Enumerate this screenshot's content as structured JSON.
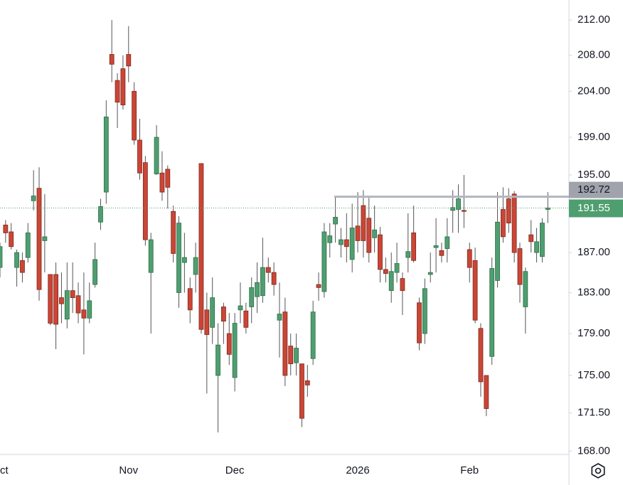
{
  "chart_data": {
    "type": "candlestick",
    "log_scale": true,
    "grid": false,
    "up_color": "#4f9e70",
    "down_color": "#cc4535",
    "categories": [
      "Oct",
      null,
      null,
      null,
      null,
      null,
      null,
      null,
      null,
      null,
      null,
      null,
      null,
      null,
      null,
      null,
      null,
      null,
      null,
      null,
      null,
      null,
      null,
      "Nov",
      null,
      null,
      null,
      null,
      null,
      null,
      null,
      null,
      null,
      null,
      null,
      null,
      null,
      null,
      null,
      null,
      null,
      null,
      "Dec",
      null,
      null,
      null,
      null,
      null,
      null,
      null,
      null,
      null,
      null,
      null,
      null,
      null,
      null,
      null,
      null,
      null,
      null,
      null,
      null,
      null,
      "2026",
      null,
      null,
      null,
      null,
      null,
      null,
      null,
      null,
      null,
      null,
      null,
      null,
      null,
      null,
      null,
      null,
      null,
      null,
      null,
      "Feb",
      null,
      null,
      null,
      null,
      null,
      null,
      null,
      null,
      null,
      null,
      null,
      null,
      null,
      null
    ],
    "open": [
      185.5,
      189.8,
      189.1,
      185.5,
      186.2,
      186.5,
      192.3,
      193.6,
      188.2,
      184.8,
      184.8,
      182.5,
      180.4,
      183.2,
      182.7,
      181.3,
      180.5,
      183.8,
      190.1,
      193.2,
      208.1,
      205.2,
      206.5,
      208.1,
      204,
      198.7,
      196.3,
      185,
      195.1,
      195.2,
      195.6,
      191.2,
      183,
      186,
      183.4,
      184.8,
      196.2,
      181.3,
      179.6,
      175,
      181.6,
      179,
      174.8,
      181.3,
      181.2,
      181.6,
      182.6,
      182.7,
      185.5,
      185,
      180.3,
      181.1,
      177.8,
      176.2,
      176.1,
      174.5,
      176.6,
      183.8,
      183.1,
      188,
      189.9,
      187.8,
      188.3,
      186.3,
      189.7,
      191.8,
      190.5,
      188.5,
      188.8,
      185.3,
      183.2,
      185,
      184.4,
      186.5,
      189,
      182,
      179,
      184.8,
      187.5,
      187.2,
      187.4,
      191.3,
      191.4,
      191.3,
      187.3,
      186.2,
      179.5,
      175,
      176.8,
      184.2,
      191.4,
      192.5,
      193,
      187.4,
      181.6,
      188.8,
      187,
      186.6,
      191.4
    ],
    "high": [
      188,
      190.3,
      190,
      187.3,
      187,
      190,
      195.5,
      195.8,
      193,
      184.8,
      186,
      185,
      186,
      186,
      184,
      185,
      184,
      188,
      192.5,
      203,
      212,
      206,
      208,
      211.3,
      205,
      201,
      197,
      189,
      200.3,
      197.5,
      196,
      191.8,
      190.7,
      189,
      184.5,
      188,
      196.2,
      183,
      184.5,
      180,
      182,
      181,
      181,
      184,
      182,
      184.5,
      186,
      188.5,
      186.5,
      186,
      184,
      182.5,
      179,
      179,
      176.1,
      176,
      182.2,
      185,
      190,
      190,
      192.7,
      189.5,
      191,
      192,
      193.2,
      193.4,
      192.6,
      191.8,
      189.6,
      186.5,
      187,
      188,
      185,
      191,
      191.8,
      182.5,
      184.4,
      187,
      190.5,
      188,
      190.5,
      193.4,
      194,
      195,
      188,
      187.5,
      180,
      175,
      186.5,
      193.2,
      193.7,
      193.6,
      193.3,
      188,
      185.5,
      190.3,
      189.5,
      190.5,
      193.2
    ],
    "low": [
      184.5,
      188,
      187.3,
      183.6,
      184,
      186,
      191.3,
      182.2,
      185,
      179.8,
      177.5,
      180,
      179.5,
      181,
      180,
      177,
      180,
      183.5,
      189.3,
      192,
      205,
      200,
      202,
      205,
      198.2,
      194.5,
      187.7,
      179,
      195,
      192.3,
      191.5,
      186,
      181.5,
      183,
      180,
      183,
      179,
      173.3,
      178,
      169.7,
      178,
      176,
      173.5,
      180,
      179,
      180,
      181,
      182,
      184,
      182.7,
      176.7,
      174,
      175,
      175,
      170.2,
      173,
      176,
      182.2,
      182.5,
      186.5,
      188,
      186.5,
      186,
      185,
      187,
      186.5,
      186,
      187,
      184,
      184,
      182,
      184,
      180.8,
      185,
      186,
      177.4,
      178,
      184,
      185,
      186,
      186,
      189,
      189,
      189.5,
      184,
      180,
      173,
      171.2,
      176,
      183.5,
      188,
      189,
      186,
      182,
      179,
      187,
      186,
      186,
      190
    ],
    "close": [
      187.6,
      189,
      187.6,
      187,
      185,
      189,
      192.8,
      183.3,
      188.6,
      180,
      179.9,
      181.9,
      183.2,
      182.5,
      181,
      180.5,
      182.2,
      186.3,
      191.7,
      201.2,
      207,
      202.8,
      202.5,
      206.8,
      198.7,
      195.2,
      188.3,
      188.3,
      199,
      193.2,
      193.7,
      186.9,
      190,
      186.5,
      181.3,
      186.5,
      179.4,
      178.9,
      182.5,
      177.9,
      180.2,
      177,
      180,
      181.7,
      179.6,
      183.5,
      184,
      185.5,
      185,
      183.8,
      180.9,
      175,
      176.1,
      177.6,
      171,
      174.1,
      181.1,
      183.5,
      189.1,
      188.7,
      190.6,
      188.3,
      187.6,
      189.5,
      188.2,
      188.2,
      187,
      189.3,
      185.3,
      184.9,
      185.1,
      185.9,
      183.2,
      187.1,
      186.2,
      178.1,
      183.4,
      185,
      187.7,
      186.7,
      188.6,
      191.6,
      192.5,
      191.2,
      185.5,
      180.3,
      174.4,
      171.9,
      185.4,
      190.1,
      188.6,
      190,
      187,
      183.8,
      185.1,
      188.1,
      188.1,
      190,
      191.55
    ],
    "ylim": [
      167.7,
      214.3
    ],
    "yticks": [
      {
        "value": 212,
        "label": "212.00"
      },
      {
        "value": 208,
        "label": "208.00"
      },
      {
        "value": 204,
        "label": "204.00"
      },
      {
        "value": 199,
        "label": "199.00"
      },
      {
        "value": 195,
        "label": "195.00"
      },
      {
        "value": 187,
        "label": "187.00"
      },
      {
        "value": 183,
        "label": "183.00"
      },
      {
        "value": 179,
        "label": "179.00"
      },
      {
        "value": 175,
        "label": "175.00"
      },
      {
        "value": 171.5,
        "label": "171.50"
      },
      {
        "value": 168,
        "label": "168.00"
      }
    ],
    "level_line": 192.72,
    "level_color": "#b2b5be",
    "last_price": 191.55
  }
}
